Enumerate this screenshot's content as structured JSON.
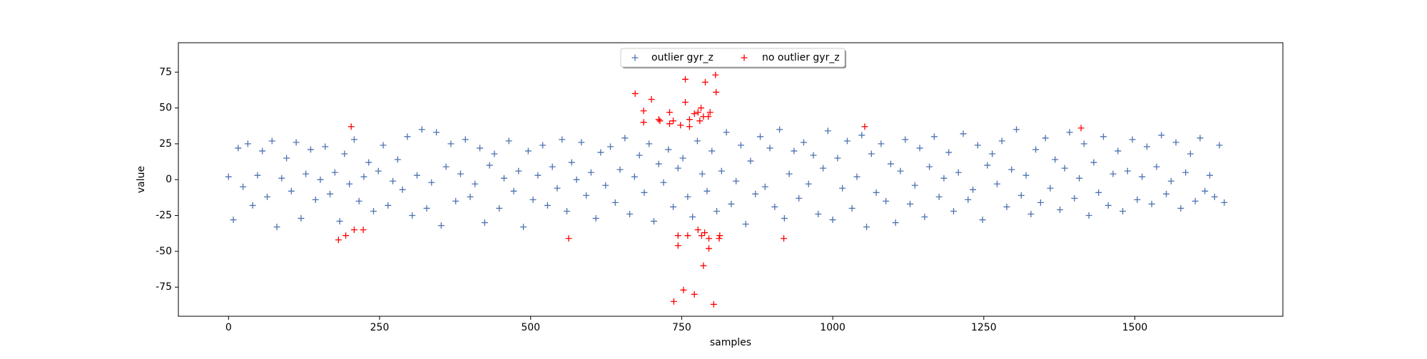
{
  "chart_data": {
    "type": "scatter",
    "x_label": "samples",
    "y_label": "value",
    "xlim": [
      -83,
      1745
    ],
    "ylim": [
      -95.3,
      95.5
    ],
    "xticks": [
      0,
      250,
      500,
      750,
      1000,
      1250,
      1500
    ],
    "yticks": [
      -75,
      -50,
      -25,
      0,
      25,
      50,
      75
    ],
    "legend": "upper center",
    "series": [
      {
        "name": "outlier gyr_z",
        "color": "#4c72b0",
        "x": [
          0,
          8,
          16,
          24,
          32,
          40,
          48,
          56,
          64,
          72,
          80,
          88,
          96,
          104,
          112,
          120,
          128,
          136,
          144,
          152,
          160,
          168,
          176,
          184,
          192,
          200,
          208,
          216,
          224,
          232,
          240,
          248,
          256,
          264,
          272,
          280,
          288,
          296,
          304,
          312,
          320,
          328,
          336,
          344,
          352,
          360,
          368,
          376,
          384,
          392,
          400,
          408,
          416,
          424,
          432,
          440,
          448,
          456,
          464,
          472,
          480,
          488,
          496,
          504,
          512,
          520,
          528,
          536,
          544,
          552,
          560,
          568,
          576,
          584,
          592,
          600,
          608,
          616,
          624,
          632,
          640,
          648,
          656,
          664,
          672,
          680,
          688,
          696,
          704,
          712,
          720,
          728,
          736,
          744,
          752,
          760,
          768,
          776,
          784,
          792,
          800,
          808,
          816,
          824,
          832,
          840,
          848,
          856,
          864,
          872,
          880,
          888,
          896,
          904,
          912,
          920,
          928,
          936,
          944,
          952,
          960,
          968,
          976,
          984,
          992,
          1000,
          1008,
          1016,
          1024,
          1032,
          1040,
          1048,
          1056,
          1064,
          1072,
          1080,
          1088,
          1096,
          1104,
          1112,
          1120,
          1128,
          1136,
          1144,
          1152,
          1160,
          1168,
          1176,
          1184,
          1192,
          1200,
          1208,
          1216,
          1224,
          1232,
          1240,
          1248,
          1256,
          1264,
          1272,
          1280,
          1288,
          1296,
          1304,
          1312,
          1320,
          1328,
          1336,
          1344,
          1352,
          1360,
          1368,
          1376,
          1384,
          1392,
          1400,
          1408,
          1416,
          1424,
          1432,
          1440,
          1448,
          1456,
          1464,
          1472,
          1480,
          1488,
          1496,
          1504,
          1512,
          1520,
          1528,
          1536,
          1544,
          1552,
          1560,
          1568,
          1576,
          1584,
          1592,
          1600,
          1608,
          1616,
          1624,
          1632,
          1640,
          1648
        ],
        "values": [
          2,
          -28,
          22,
          -5,
          25,
          -18,
          3,
          20,
          -12,
          27,
          -33,
          1,
          15,
          -8,
          26,
          -27,
          4,
          21,
          -14,
          0,
          23,
          -10,
          5,
          -29,
          18,
          -3,
          28,
          -15,
          2,
          12,
          -22,
          6,
          24,
          -18,
          -1,
          14,
          -7,
          30,
          -25,
          3,
          35,
          -20,
          -2,
          33,
          -32,
          9,
          25,
          -15,
          4,
          28,
          -12,
          -3,
          22,
          -30,
          10,
          18,
          -20,
          1,
          27,
          -8,
          6,
          -33,
          20,
          -14,
          3,
          24,
          -18,
          9,
          -6,
          28,
          -22,
          12,
          0,
          26,
          -11,
          5,
          -27,
          19,
          -4,
          23,
          -16,
          7,
          29,
          -24,
          2,
          17,
          -9,
          25,
          -29,
          11,
          -2,
          21,
          -19,
          8,
          15,
          -12,
          -26,
          27,
          4,
          -8,
          20,
          -22,
          6,
          33,
          -17,
          -1,
          24,
          -31,
          13,
          -10,
          30,
          -5,
          22,
          -19,
          35,
          -27,
          4,
          20,
          -13,
          26,
          -3,
          17,
          -24,
          8,
          34,
          -28,
          15,
          -6,
          27,
          -20,
          2,
          31,
          -33,
          18,
          -9,
          25,
          -15,
          11,
          -30,
          6,
          28,
          -17,
          -4,
          22,
          -26,
          9,
          30,
          -12,
          1,
          19,
          -22,
          5,
          32,
          -14,
          -7,
          24,
          -28,
          10,
          18,
          -3,
          27,
          -19,
          7,
          35,
          -11,
          3,
          -24,
          21,
          -16,
          29,
          -6,
          14,
          -21,
          8,
          33,
          -13,
          1,
          25,
          -25,
          12,
          -9,
          30,
          -18,
          4,
          20,
          -22,
          6,
          28,
          -14,
          2,
          23,
          -17,
          9,
          31,
          -10,
          -1,
          26,
          -20,
          5,
          18,
          -15,
          29,
          -8,
          3,
          -12,
          24,
          -16
        ]
      },
      {
        "name": "no outlier gyr_z",
        "color": "#ff0000",
        "x": [
          182,
          194,
          203,
          208,
          223,
          563,
          673,
          687,
          687,
          700,
          712,
          714,
          730,
          730,
          736,
          737,
          744,
          744,
          748,
          753,
          756,
          756,
          760,
          763,
          763,
          771,
          771,
          777,
          777,
          780,
          782,
          783,
          786,
          788,
          786,
          789,
          794,
          795,
          795,
          797,
          803,
          806,
          807,
          812,
          813,
          919,
          1053,
          1411
        ],
        "values": [
          -42,
          -39,
          37,
          -35,
          -35,
          -41,
          60,
          48,
          40,
          56,
          42,
          41,
          47,
          39,
          41,
          -85,
          -39,
          -46,
          38,
          -77,
          70,
          54,
          -39,
          42,
          37,
          -80,
          46,
          -35,
          47,
          41,
          50,
          -39,
          44,
          -37,
          -60,
          68,
          44,
          -48,
          -41,
          47,
          -87,
          73,
          61,
          -41,
          -39,
          -41,
          37,
          36
        ]
      }
    ]
  }
}
